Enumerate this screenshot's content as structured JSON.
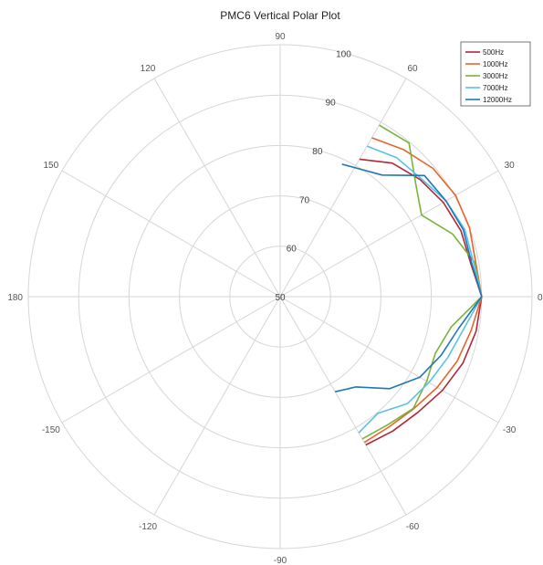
{
  "chart_data": {
    "type": "line",
    "projection": "polar",
    "title": "PMC6 Vertical Polar Plot",
    "r_range": [
      50,
      100
    ],
    "radial_ticks": [
      "50",
      "60",
      "70",
      "80",
      "90",
      "100"
    ],
    "angle_ticks": [
      "0",
      "30",
      "60",
      "90",
      "120",
      "150",
      "180",
      "-150",
      "-120",
      "-90",
      "-60",
      "-30"
    ],
    "grid": true,
    "legend": "top-right",
    "series": [
      {
        "name": "500Hz",
        "color": "#b2283a",
        "points": [
          [
            60,
            81.5
          ],
          [
            50,
            84.6
          ],
          [
            40,
            86.2
          ],
          [
            30,
            87.4
          ],
          [
            20,
            88.2
          ],
          [
            10,
            88.4
          ],
          [
            0,
            90
          ],
          [
            -10,
            89.5
          ],
          [
            -20,
            88.6
          ],
          [
            -30,
            87.2
          ],
          [
            -40,
            85.7
          ],
          [
            -50,
            84.8
          ],
          [
            -60,
            84.0
          ]
        ]
      },
      {
        "name": "1000Hz",
        "color": "#e8642a",
        "points": [
          [
            60,
            86.4
          ],
          [
            50,
            88.1
          ],
          [
            40,
            89.6
          ],
          [
            30,
            90.2
          ],
          [
            20,
            90.0
          ],
          [
            10,
            89.4
          ],
          [
            0,
            90
          ],
          [
            -10,
            88.5
          ],
          [
            -20,
            87.4
          ],
          [
            -30,
            86.0
          ],
          [
            -40,
            84.6
          ],
          [
            -50,
            83.7
          ],
          [
            -60,
            83.4
          ]
        ]
      },
      {
        "name": "3000Hz",
        "color": "#7ab33a",
        "points": [
          [
            60,
            89.3
          ],
          [
            50,
            89.8
          ],
          [
            40,
            85.1
          ],
          [
            30,
            82.4
          ],
          [
            20,
            86.4
          ],
          [
            10,
            89.2
          ],
          [
            0,
            90
          ],
          [
            -10,
            84.5
          ],
          [
            -20,
            82.8
          ],
          [
            -30,
            83.6
          ],
          [
            -40,
            84.5
          ],
          [
            -50,
            83.2
          ],
          [
            -60,
            82.6
          ]
        ]
      },
      {
        "name": "7000Hz",
        "color": "#5cc0e6",
        "points": [
          [
            60,
            84.5
          ],
          [
            50,
            86.0
          ],
          [
            40,
            86.5
          ],
          [
            30,
            88.0
          ],
          [
            20,
            89.0
          ],
          [
            10,
            89.0
          ],
          [
            0,
            90
          ],
          [
            -10,
            87.0
          ],
          [
            -20,
            85.4
          ],
          [
            -30,
            84.1
          ],
          [
            -40,
            83.0
          ],
          [
            -50,
            80.2
          ],
          [
            -60,
            81.2
          ]
        ]
      },
      {
        "name": "12000Hz",
        "color": "#1f77b4",
        "points": [
          [
            65,
            79.0
          ],
          [
            50,
            81.5
          ],
          [
            40,
            87.4
          ],
          [
            30,
            88.0
          ],
          [
            20,
            88.7
          ],
          [
            10,
            88.6
          ],
          [
            0,
            90
          ],
          [
            -10,
            86.0
          ],
          [
            -20,
            84.0
          ],
          [
            -30,
            82.0
          ],
          [
            -40,
            78.4
          ],
          [
            -50,
            73.4
          ],
          [
            -60,
            71.8
          ]
        ]
      }
    ]
  }
}
